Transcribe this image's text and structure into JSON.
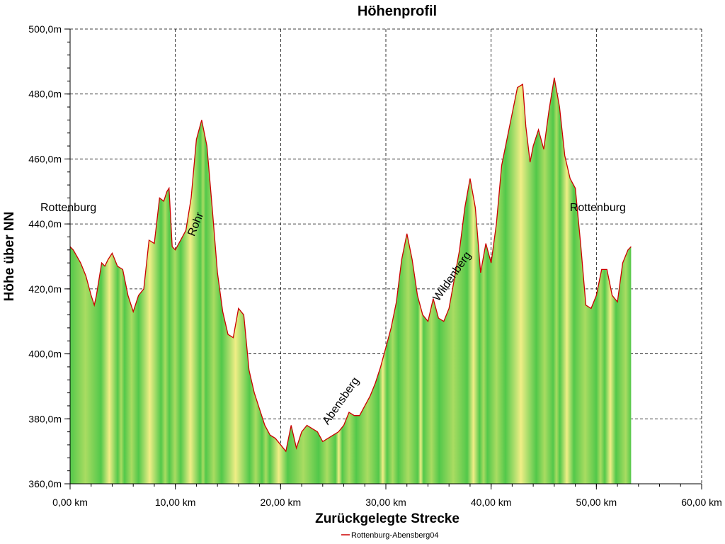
{
  "chart_data": {
    "type": "area",
    "title": "Höhenprofil",
    "xlabel": "Zurückgelegte Strecke",
    "ylabel": "Höhe über NN",
    "xlim": [
      0,
      60
    ],
    "ylim": [
      360,
      500
    ],
    "x_ticks": [
      0,
      10,
      20,
      30,
      40,
      50,
      60
    ],
    "x_tick_labels": [
      "0,00 km",
      "10,00 km",
      "20,00 km",
      "30,00 km",
      "40,00 km",
      "50,00 km",
      "60,00 km"
    ],
    "y_ticks": [
      360,
      380,
      400,
      420,
      440,
      460,
      480,
      500
    ],
    "y_tick_labels": [
      "360,0m",
      "380,0m",
      "400,0m",
      "420,0m",
      "440,0m",
      "460,0m",
      "480,0m",
      "500,0m"
    ],
    "grid": true,
    "legend_position": "bottom-center",
    "line_color": "#cc0000",
    "fill_colors": [
      "#52c84a",
      "#f0ee86"
    ],
    "series": [
      {
        "name": "Rottenburg-Abensberg04",
        "x": [
          0,
          0.3,
          1.0,
          1.5,
          2.0,
          2.3,
          2.5,
          3.0,
          3.3,
          3.6,
          4.0,
          4.5,
          5.0,
          5.5,
          6.0,
          6.5,
          7.0,
          7.5,
          8.0,
          8.5,
          8.9,
          9.2,
          9.4,
          9.7,
          10.0,
          10.5,
          11.0,
          11.5,
          12.0,
          12.5,
          13.0,
          13.5,
          14.0,
          14.5,
          15.0,
          15.5,
          16.0,
          16.5,
          17.0,
          17.5,
          18.0,
          18.5,
          19.0,
          19.5,
          20.0,
          20.5,
          21.0,
          21.5,
          22.0,
          22.5,
          23.0,
          23.5,
          24.0,
          24.5,
          25.0,
          25.5,
          26.0,
          26.5,
          27.0,
          27.5,
          28.0,
          28.5,
          29.0,
          29.5,
          30.0,
          30.5,
          31.0,
          31.5,
          32.0,
          32.5,
          33.0,
          33.5,
          34.0,
          34.5,
          35.0,
          35.5,
          36.0,
          36.5,
          37.0,
          37.5,
          38.0,
          38.5,
          39.0,
          39.5,
          40.0,
          40.5,
          41.0,
          41.5,
          42.0,
          42.5,
          43.0,
          43.3,
          43.7,
          44.0,
          44.5,
          45.0,
          45.5,
          46.0,
          46.5,
          47.0,
          47.5,
          48.0,
          48.5,
          49.0,
          49.5,
          50.0,
          50.5,
          51.0,
          51.5,
          52.0,
          52.5,
          53.0,
          53.3
        ],
        "y": [
          433,
          432,
          428,
          424,
          418,
          415,
          418,
          428,
          427,
          429,
          431,
          427,
          426,
          418,
          413,
          418,
          420,
          435,
          434,
          448,
          447,
          450,
          451,
          433,
          432,
          435,
          438,
          448,
          466,
          472,
          464,
          445,
          425,
          413,
          406,
          405,
          414,
          412,
          395,
          388,
          383,
          378,
          375,
          374,
          372,
          370,
          378,
          371,
          376,
          378,
          377,
          376,
          373,
          374,
          375,
          376,
          378,
          382,
          381,
          381,
          384,
          387,
          391,
          396,
          402,
          408,
          416,
          429,
          437,
          429,
          418,
          412,
          410,
          417,
          411,
          410,
          414,
          423,
          432,
          445,
          454,
          445,
          425,
          434,
          428,
          440,
          458,
          466,
          474,
          482,
          483,
          470,
          459,
          464,
          469,
          463,
          475,
          485,
          476,
          461,
          454,
          451,
          434,
          415,
          414,
          418,
          426,
          426,
          418,
          416,
          428,
          432,
          433
        ]
      }
    ],
    "annotations": [
      {
        "text": "Rottenburg",
        "x": 0.0,
        "y": 444,
        "rotation": 0
      },
      {
        "text": "Rohr",
        "x": 11.8,
        "y": 436,
        "rotation": -68
      },
      {
        "text": "Abensberg",
        "x": 24.5,
        "y": 378,
        "rotation": -55
      },
      {
        "text": "Wildenberg",
        "x": 35.0,
        "y": 416,
        "rotation": -55
      },
      {
        "text": "Rottenburg",
        "x": 50.3,
        "y": 444,
        "rotation": 0
      }
    ]
  }
}
